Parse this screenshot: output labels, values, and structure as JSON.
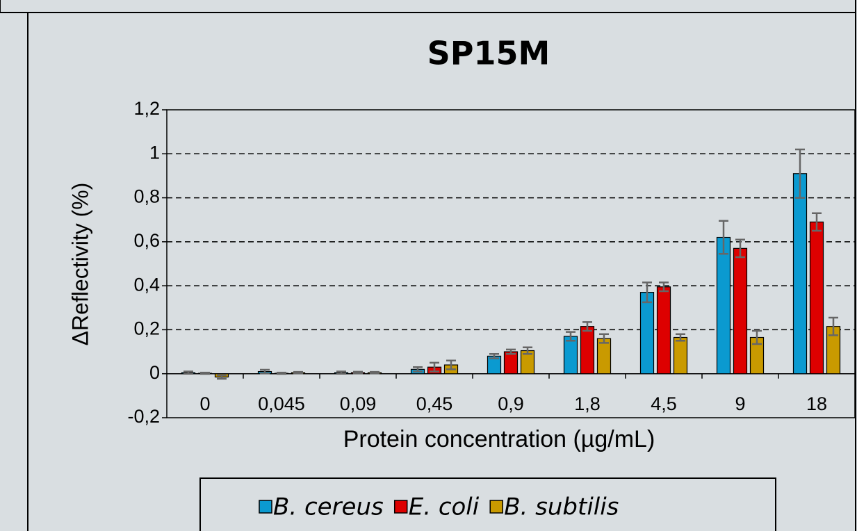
{
  "chart_data": {
    "type": "bar",
    "title": "SP15M",
    "xlabel": "Protein concentration (µg/mL)",
    "ylabel": "ΔReflectivity (%)",
    "categories": [
      "0",
      "0,045",
      "0,09",
      "0,45",
      "0,9",
      "1,8",
      "4,5",
      "9",
      "18"
    ],
    "series": [
      {
        "name": "B. cereus",
        "color": "#0b9ad0",
        "values": [
          0.005,
          0.01,
          0.005,
          0.02,
          0.08,
          0.17,
          0.37,
          0.62,
          0.91
        ],
        "errors": [
          0.005,
          0.008,
          0.005,
          0.01,
          0.01,
          0.02,
          0.045,
          0.075,
          0.11
        ]
      },
      {
        "name": "E. coli",
        "color": "#dd0000",
        "values": [
          0.002,
          0.002,
          0.005,
          0.03,
          0.1,
          0.215,
          0.395,
          0.57,
          0.69
        ],
        "errors": [
          0.003,
          0.003,
          0.004,
          0.02,
          0.01,
          0.02,
          0.02,
          0.04,
          0.04
        ]
      },
      {
        "name": "B. subtilis",
        "color": "#c99a00",
        "values": [
          -0.015,
          0.005,
          0.005,
          0.04,
          0.105,
          0.16,
          0.165,
          0.165,
          0.215
        ],
        "errors": [
          0.008,
          0.003,
          0.003,
          0.02,
          0.015,
          0.02,
          0.015,
          0.03,
          0.04
        ]
      }
    ],
    "ylim": [
      -0.2,
      1.2
    ],
    "yticks": [
      {
        "value": -0.2,
        "label": "-0,2"
      },
      0,
      {
        "value": 0.2,
        "label": "0,2"
      },
      {
        "value": 0.4,
        "label": "0,4"
      },
      {
        "value": 0.6,
        "label": "0,6"
      },
      {
        "value": 0.8,
        "label": "0,8"
      },
      1,
      {
        "value": 1.2,
        "label": "1,2"
      }
    ],
    "grid": true,
    "legend": "bottom"
  }
}
